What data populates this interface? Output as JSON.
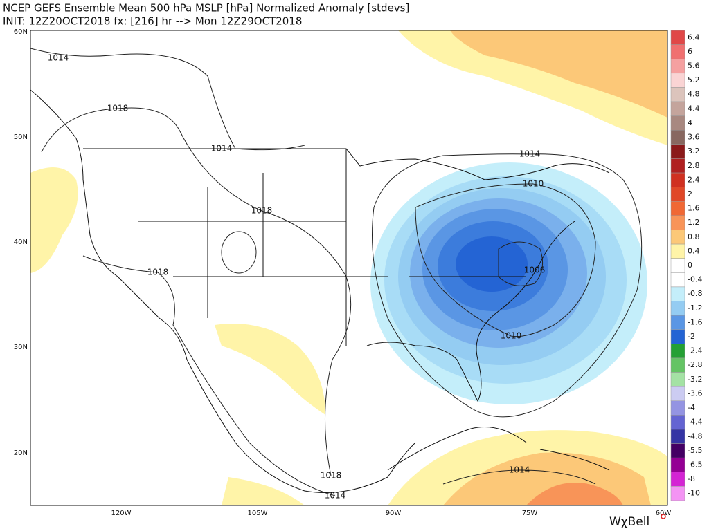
{
  "header": {
    "title": "NCEP GEFS Ensemble Mean 500 hPa MSLP [hPa] Normalized Anomaly [stdevs]",
    "subtitle": "INIT: 12Z20OCT2018 fx: [216] hr --> Mon 12Z29OCT2018"
  },
  "latitude_labels": [
    "60N",
    "50N",
    "40N",
    "30N",
    "20N"
  ],
  "longitude_labels": [
    "120W",
    "105W",
    "90W",
    "75W",
    "60W"
  ],
  "contour_labels": [
    "1014",
    "1018",
    "1014",
    "1018",
    "1018",
    "1014",
    "1010",
    "1006",
    "1010",
    "1018",
    "1014",
    "1014"
  ],
  "colorbar": [
    {
      "value": 6.4,
      "color": "#e04848"
    },
    {
      "value": 6,
      "color": "#f07070"
    },
    {
      "value": 5.6,
      "color": "#f5a0a0"
    },
    {
      "value": 5.2,
      "color": "#fad4d4"
    },
    {
      "value": 4.8,
      "color": "#dcc4bc"
    },
    {
      "value": 4.4,
      "color": "#c4a49c"
    },
    {
      "value": 4,
      "color": "#a88880"
    },
    {
      "value": 3.6,
      "color": "#886860"
    },
    {
      "value": 3.2,
      "color": "#8b1a1a"
    },
    {
      "value": 2.8,
      "color": "#b02020"
    },
    {
      "value": 2.4,
      "color": "#d03020"
    },
    {
      "value": 2,
      "color": "#e04828"
    },
    {
      "value": 1.6,
      "color": "#f06834"
    },
    {
      "value": 1.2,
      "color": "#f89458"
    },
    {
      "value": 0.8,
      "color": "#fcc878"
    },
    {
      "value": 0.4,
      "color": "#fff4a8"
    },
    {
      "value": 0,
      "color": "#ffffff"
    },
    {
      "value": -0.4,
      "color": "#ffffff"
    },
    {
      "value": -0.8,
      "color": "#c4eefa"
    },
    {
      "value": -1.2,
      "color": "#94ccf2"
    },
    {
      "value": -1.6,
      "color": "#5a96e4"
    },
    {
      "value": -2,
      "color": "#2464d4"
    },
    {
      "value": -2.4,
      "color": "#24a034"
    },
    {
      "value": -2.8,
      "color": "#64c464"
    },
    {
      "value": -3.2,
      "color": "#a4e2a4"
    },
    {
      "value": -3.6,
      "color": "#ccccf2"
    },
    {
      "value": -4,
      "color": "#9494e2"
    },
    {
      "value": -4.4,
      "color": "#6464d2"
    },
    {
      "value": -4.8,
      "color": "#3434a4"
    },
    {
      "value": -5.5,
      "color": "#440064"
    },
    {
      "value": -6.5,
      "color": "#940094"
    },
    {
      "value": -8,
      "color": "#d424d4"
    },
    {
      "value": -10,
      "color": "#f494f4"
    }
  ],
  "brand": "WχBell"
}
